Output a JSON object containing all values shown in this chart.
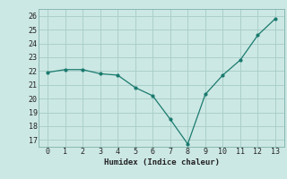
{
  "x": [
    0,
    1,
    2,
    3,
    4,
    5,
    6,
    7,
    8,
    9,
    10,
    11,
    12,
    13
  ],
  "y": [
    21.9,
    22.1,
    22.1,
    21.8,
    21.7,
    20.8,
    20.2,
    18.5,
    16.7,
    20.3,
    21.7,
    22.8,
    24.6,
    25.8
  ],
  "xlabel": "Humidex (Indice chaleur)",
  "ylim": [
    16.5,
    26.5
  ],
  "xlim": [
    -0.5,
    13.5
  ],
  "yticks": [
    17,
    18,
    19,
    20,
    21,
    22,
    23,
    24,
    25,
    26
  ],
  "xticks": [
    0,
    1,
    2,
    3,
    4,
    5,
    6,
    7,
    8,
    9,
    10,
    11,
    12,
    13
  ],
  "line_color": "#1a7a6e",
  "marker_color": "#1a7a6e",
  "bg_color": "#cce8e4",
  "grid_color": "#aacfca",
  "axes_color": "#88b8b2",
  "label_fontsize": 6.5,
  "tick_fontsize": 6.0
}
